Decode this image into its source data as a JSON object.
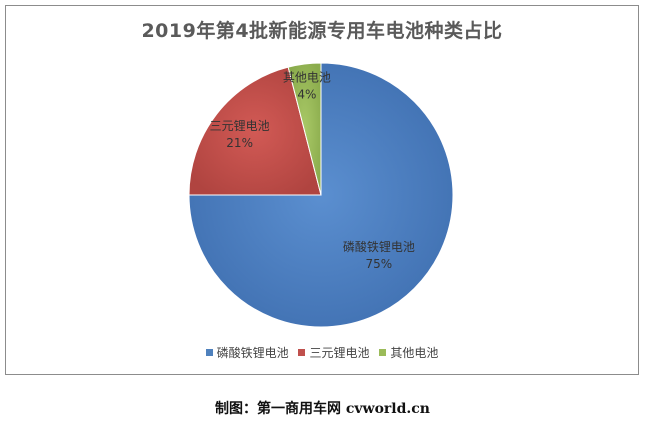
{
  "chart_data": {
    "type": "pie",
    "title": "2019年第4批新能源专用车电池种类占比",
    "categories": [
      "磷酸铁锂电池",
      "三元锂电池",
      "其他电池"
    ],
    "values": [
      75,
      21,
      4
    ],
    "value_labels": [
      "75%",
      "21%",
      "4%"
    ],
    "colors": [
      "#4f81bd",
      "#c0504d",
      "#9bbb59"
    ],
    "legend_position": "bottom",
    "grid": false
  },
  "caption": "制图：第一商用车网 cvworld.cn"
}
